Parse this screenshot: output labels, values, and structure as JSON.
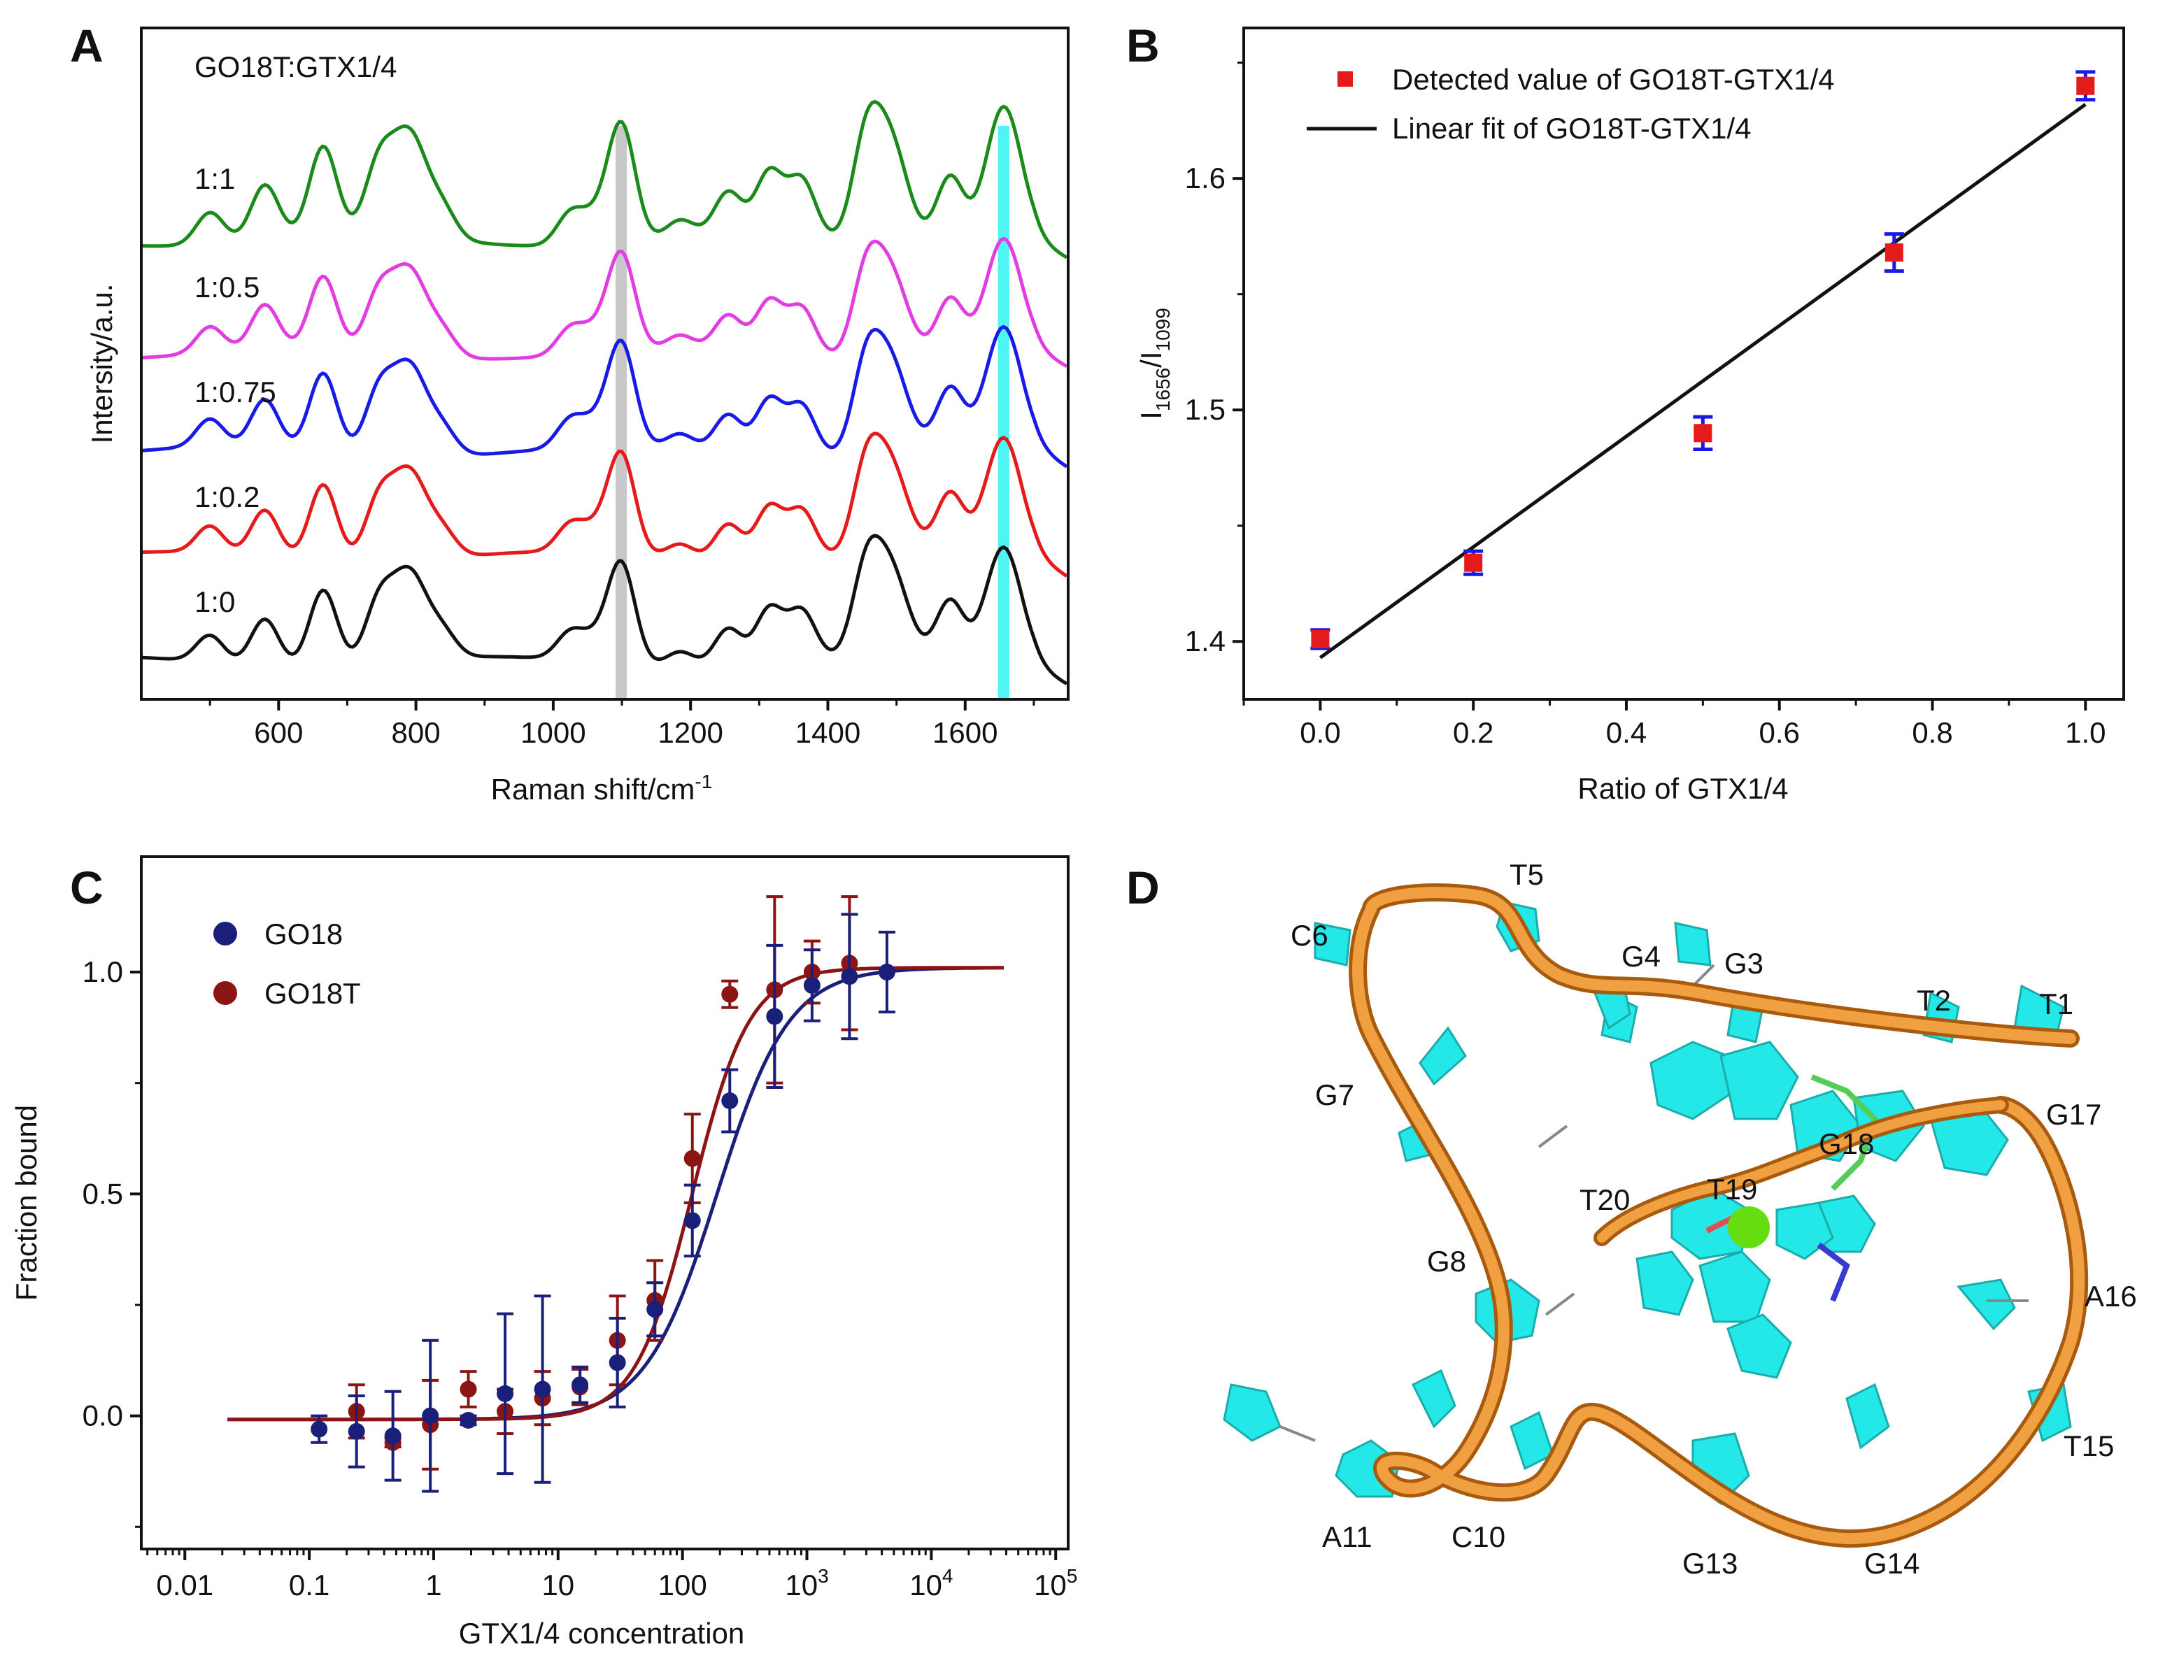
{
  "figure": {
    "panels": {
      "a": {
        "label": "A"
      },
      "b": {
        "label": "B"
      },
      "c": {
        "label": "C"
      },
      "d": {
        "label": "D"
      }
    }
  },
  "chart_data": [
    {
      "panel": "A",
      "type": "line",
      "title": "GO18T:GTX1/4",
      "xlabel_main": "Raman shift/cm",
      "xlabel_sup": "-1",
      "ylabel": "Intersity/a.u.",
      "xlim": [
        400,
        1750
      ],
      "xticks": [
        "600",
        "800",
        "1000",
        "1200",
        "1400",
        "1600"
      ],
      "xtick_values": [
        600,
        800,
        1000,
        1200,
        1400,
        1600
      ],
      "highlight_bands": [
        {
          "center": 1099,
          "color": "#c8c8c8"
        },
        {
          "center": 1656,
          "color": "#4ff5f5"
        }
      ],
      "peaks_cm": [
        500,
        580,
        665,
        745,
        790,
        840,
        1025,
        1060,
        1099,
        1185,
        1255,
        1315,
        1362,
        1455,
        1490,
        1578,
        1656
      ],
      "peak_heights": [
        0.22,
        0.38,
        0.62,
        0.44,
        0.72,
        0.18,
        0.22,
        0.15,
        0.82,
        0.12,
        0.3,
        0.44,
        0.4,
        0.6,
        0.72,
        0.48,
        0.95
      ],
      "series": [
        {
          "name": "1:1",
          "color": "#1a8a1a"
        },
        {
          "name": "1:0.5",
          "color": "#e23de2"
        },
        {
          "name": "1:0.75",
          "color": "#1a1ae6"
        },
        {
          "name": "1:0.2",
          "color": "#e61a1a"
        },
        {
          "name": "1:0",
          "color": "#111111"
        }
      ]
    },
    {
      "panel": "B",
      "type": "scatter",
      "xlabel": "Ratio of GTX1/4",
      "ylabel_main": "I",
      "ylabel_sub1": "1656",
      "ylabel_slash": "/I",
      "ylabel_sub2": "1099",
      "xlim": [
        -0.1,
        1.05
      ],
      "ylim": [
        1.375,
        1.665
      ],
      "xticks": [
        "0.0",
        "0.2",
        "0.4",
        "0.6",
        "0.8",
        "1.0"
      ],
      "xtick_values": [
        0.0,
        0.2,
        0.4,
        0.6,
        0.8,
        1.0
      ],
      "yticks": [
        "1.4",
        "1.5",
        "1.6"
      ],
      "ytick_values": [
        1.4,
        1.5,
        1.6
      ],
      "points": [
        {
          "x": 0.0,
          "y": 1.401,
          "err": 0.004
        },
        {
          "x": 0.2,
          "y": 1.434,
          "err": 0.005
        },
        {
          "x": 0.5,
          "y": 1.49,
          "err": 0.007
        },
        {
          "x": 0.75,
          "y": 1.568,
          "err": 0.008
        },
        {
          "x": 1.0,
          "y": 1.64,
          "err": 0.006
        }
      ],
      "fit": {
        "x": [
          0.0,
          1.0
        ],
        "y": [
          1.393,
          1.632
        ]
      },
      "legend": {
        "points_label": "Detected value of GO18T-GTX1/4",
        "fit_label": "Linear fit of GO18T-GTX1/4"
      },
      "colors": {
        "marker": "#e61a1a",
        "errorbar": "#1a1ae6",
        "fit": "#111111"
      }
    },
    {
      "panel": "C",
      "type": "scatter",
      "xscale": "log",
      "xlabel": "GTX1/4 concentration",
      "ylabel": "Fraction bound",
      "xlim_log10": [
        -2.35,
        5.1
      ],
      "ylim": [
        -0.3,
        1.26
      ],
      "xticks": [
        "0.01",
        "0.1",
        "1",
        "10",
        "100",
        "10",
        "10",
        "10"
      ],
      "xtick_sups": [
        "",
        "",
        "",
        "",
        "",
        "3",
        "4",
        "5"
      ],
      "xtick_log10": [
        -2,
        -1,
        0,
        1,
        2,
        3,
        4,
        5
      ],
      "yticks": [
        "0.0",
        "0.5",
        "1.0"
      ],
      "ytick_values": [
        0.0,
        0.5,
        1.0
      ],
      "series": [
        {
          "name": "GO18",
          "color": "#1a1f7a",
          "fit_kd": 190,
          "fit_hill": 1.5,
          "points": [
            {
              "x": 0.12,
              "y": -0.03,
              "err": 0.03
            },
            {
              "x": 0.24,
              "y": -0.035,
              "err": 0.08
            },
            {
              "x": 0.47,
              "y": -0.045,
              "err": 0.1
            },
            {
              "x": 0.94,
              "y": 0.0,
              "err": 0.17
            },
            {
              "x": 1.9,
              "y": -0.01,
              "err": 0.01
            },
            {
              "x": 3.75,
              "y": 0.05,
              "err": 0.18
            },
            {
              "x": 7.5,
              "y": 0.06,
              "err": 0.21
            },
            {
              "x": 15,
              "y": 0.07,
              "err": 0.04
            },
            {
              "x": 30,
              "y": 0.12,
              "err": 0.1
            },
            {
              "x": 60,
              "y": 0.24,
              "err": 0.06
            },
            {
              "x": 120,
              "y": 0.44,
              "err": 0.08
            },
            {
              "x": 240,
              "y": 0.71,
              "err": 0.07
            },
            {
              "x": 550,
              "y": 0.9,
              "err": 0.16
            },
            {
              "x": 1100,
              "y": 0.97,
              "err": 0.08
            },
            {
              "x": 2200,
              "y": 0.99,
              "err": 0.14
            },
            {
              "x": 4400,
              "y": 1.0,
              "err": 0.09
            }
          ]
        },
        {
          "name": "GO18T",
          "color": "#8b1414",
          "fit_kd": 120,
          "fit_hill": 1.9,
          "points": [
            {
              "x": 0.24,
              "y": 0.01,
              "err": 0.06
            },
            {
              "x": 0.47,
              "y": -0.06,
              "err": 0.01
            },
            {
              "x": 0.94,
              "y": -0.02,
              "err": 0.1
            },
            {
              "x": 1.9,
              "y": 0.06,
              "err": 0.04
            },
            {
              "x": 3.75,
              "y": 0.01,
              "err": 0.05
            },
            {
              "x": 7.5,
              "y": 0.04,
              "err": 0.06
            },
            {
              "x": 15,
              "y": 0.065,
              "err": 0.04
            },
            {
              "x": 30,
              "y": 0.17,
              "err": 0.1
            },
            {
              "x": 60,
              "y": 0.26,
              "err": 0.09
            },
            {
              "x": 120,
              "y": 0.58,
              "err": 0.1
            },
            {
              "x": 240,
              "y": 0.95,
              "err": 0.03
            },
            {
              "x": 550,
              "y": 0.96,
              "err": 0.21
            },
            {
              "x": 1100,
              "y": 1.0,
              "err": 0.07
            },
            {
              "x": 2200,
              "y": 1.02,
              "err": 0.15
            }
          ]
        }
      ]
    },
    {
      "panel": "D",
      "type": "diagram",
      "description": "3D structure cartoon of aptamer",
      "residues": [
        "T1",
        "T2",
        "G3",
        "G4",
        "T5",
        "C6",
        "G7",
        "G8",
        "C10",
        "A11",
        "G13",
        "G14",
        "T15",
        "A16",
        "G17",
        "G18",
        "T19",
        "T20"
      ],
      "colors": {
        "backbone": "#e58a1e",
        "base": "#19e6e6",
        "ligand_ion": "#66dd11"
      }
    }
  ]
}
